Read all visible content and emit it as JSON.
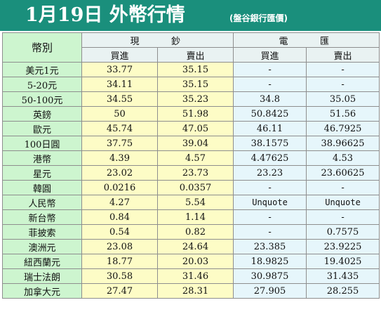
{
  "header": {
    "title": "1月19日 外幣行情",
    "subtitle": "(盤谷銀行匯價)"
  },
  "table": {
    "corner_label": "幣別",
    "groups": {
      "cash": "現　　鈔",
      "wire": "電　　匯"
    },
    "subheaders": {
      "cash_buy": "買進",
      "cash_sell": "賣出",
      "wire_buy": "買進",
      "wire_sell": "賣出"
    },
    "rows": [
      {
        "currency": "美元1元",
        "cash_buy": "33.77",
        "cash_sell": "35.15",
        "wire_buy": "-",
        "wire_sell": "-"
      },
      {
        "currency": "5-20元",
        "cash_buy": "34.11",
        "cash_sell": "35.15",
        "wire_buy": "-",
        "wire_sell": "-"
      },
      {
        "currency": "50-100元",
        "cash_buy": "34.55",
        "cash_sell": "35.23",
        "wire_buy": "34.8",
        "wire_sell": "35.05"
      },
      {
        "currency": "英鎊",
        "cash_buy": "50",
        "cash_sell": "51.98",
        "wire_buy": "50.8425",
        "wire_sell": "51.56"
      },
      {
        "currency": "歐元",
        "cash_buy": "45.74",
        "cash_sell": "47.05",
        "wire_buy": "46.11",
        "wire_sell": "46.7925"
      },
      {
        "currency": "100日圓",
        "cash_buy": "37.75",
        "cash_sell": "39.04",
        "wire_buy": "38.1575",
        "wire_sell": "38.96625"
      },
      {
        "currency": "港幣",
        "cash_buy": "4.39",
        "cash_sell": "4.57",
        "wire_buy": "4.47625",
        "wire_sell": "4.53"
      },
      {
        "currency": "星元",
        "cash_buy": "23.02",
        "cash_sell": "23.73",
        "wire_buy": "23.23",
        "wire_sell": "23.60625"
      },
      {
        "currency": "韓圓",
        "cash_buy": "0.0216",
        "cash_sell": "0.0357",
        "wire_buy": "-",
        "wire_sell": "-"
      },
      {
        "currency": "人民幣",
        "cash_buy": "4.27",
        "cash_sell": "5.54",
        "wire_buy": "Unquote",
        "wire_sell": "Unquote"
      },
      {
        "currency": "新台幣",
        "cash_buy": "0.84",
        "cash_sell": "1.14",
        "wire_buy": "-",
        "wire_sell": "-"
      },
      {
        "currency": "菲披索",
        "cash_buy": "0.54",
        "cash_sell": "0.82",
        "wire_buy": "-",
        "wire_sell": "0.7575"
      },
      {
        "currency": "澳洲元",
        "cash_buy": "23.08",
        "cash_sell": "24.64",
        "wire_buy": "23.385",
        "wire_sell": "23.9225"
      },
      {
        "currency": "紐西蘭元",
        "cash_buy": "18.77",
        "cash_sell": "20.03",
        "wire_buy": "18.9825",
        "wire_sell": "19.4025"
      },
      {
        "currency": "瑞士法朗",
        "cash_buy": "30.58",
        "cash_sell": "31.46",
        "wire_buy": "30.9875",
        "wire_sell": "31.435"
      },
      {
        "currency": "加拿大元",
        "cash_buy": "27.47",
        "cash_sell": "28.31",
        "wire_buy": "27.905",
        "wire_sell": "28.255"
      }
    ]
  },
  "colors": {
    "header_bg": "#1a8f7c",
    "label_bg": "#cdf5cf",
    "cash_bg": "#fdfcc6",
    "wire_bg": "#e6f6fb",
    "grid_line": "#8e8e8e"
  }
}
